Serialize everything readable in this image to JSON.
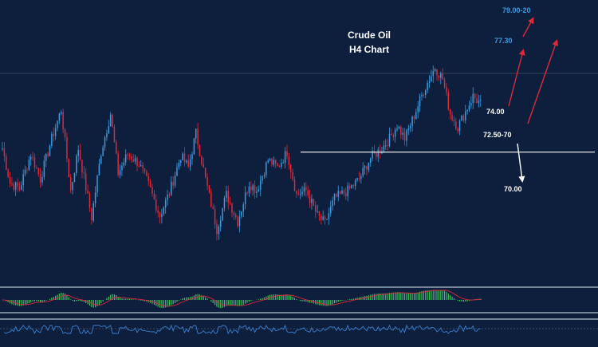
{
  "colors": {
    "background": "#0d1f3c",
    "bull": "#3a9be0",
    "bear": "#e0283a",
    "arrow_up": "#e0283a",
    "arrow_down": "#ffffff",
    "level_line": "#ffffff",
    "label_white": "#ffffff",
    "label_blue": "#3a9be0",
    "macd_hist": "#3fbf5f",
    "signal": "#e0283a",
    "rsi": "#3a7fd0",
    "separator": "#9aa6b8"
  },
  "chart_data": {
    "type": "candlestick",
    "title": "Crude Oil",
    "subtitle": "H4 Chart",
    "ylim": [
      66.0,
      80.5
    ],
    "levels": [
      {
        "label": "79.00-20",
        "value": 79.1,
        "style": "target",
        "color": "blue"
      },
      {
        "label": "77.30",
        "value": 77.3,
        "style": "target",
        "color": "blue"
      },
      {
        "label": "74.00",
        "value": 74.0,
        "style": "target",
        "color": "white"
      },
      {
        "label": "72.50-70",
        "value": 72.6,
        "style": "horizontal-line",
        "color": "white"
      },
      {
        "label": "70.00",
        "value": 70.0,
        "style": "target",
        "color": "white"
      }
    ],
    "anchors": [
      [
        0,
        72.8
      ],
      [
        4,
        71.0
      ],
      [
        9,
        70.7
      ],
      [
        15,
        72.5
      ],
      [
        20,
        71.2
      ],
      [
        26,
        73.3
      ],
      [
        31,
        74.8
      ],
      [
        36,
        70.6
      ],
      [
        40,
        72.8
      ],
      [
        47,
        69.2
      ],
      [
        52,
        72.6
      ],
      [
        57,
        74.6
      ],
      [
        61,
        71.5
      ],
      [
        66,
        72.5
      ],
      [
        72,
        72.0
      ],
      [
        77,
        70.9
      ],
      [
        83,
        69.3
      ],
      [
        88,
        70.5
      ],
      [
        94,
        72.4
      ],
      [
        98,
        71.8
      ],
      [
        102,
        73.6
      ],
      [
        107,
        71.2
      ],
      [
        113,
        68.6
      ],
      [
        118,
        70.4
      ],
      [
        124,
        69.0
      ],
      [
        130,
        71.0
      ],
      [
        134,
        70.6
      ],
      [
        140,
        72.2
      ],
      [
        145,
        71.8
      ],
      [
        150,
        72.6
      ],
      [
        155,
        70.4
      ],
      [
        160,
        70.6
      ],
      [
        166,
        69.3
      ],
      [
        170,
        68.9
      ],
      [
        175,
        70.2
      ],
      [
        182,
        70.6
      ],
      [
        188,
        71.2
      ],
      [
        194,
        72.3
      ],
      [
        200,
        72.8
      ],
      [
        204,
        73.3
      ],
      [
        208,
        74.0
      ],
      [
        212,
        73.3
      ],
      [
        217,
        74.5
      ],
      [
        222,
        75.8
      ],
      [
        225,
        76.4
      ],
      [
        228,
        77.0
      ],
      [
        232,
        76.4
      ],
      [
        236,
        74.6
      ],
      [
        240,
        73.9
      ],
      [
        244,
        74.7
      ],
      [
        248,
        75.5
      ],
      [
        252,
        75.1
      ]
    ],
    "macd_ylim": [
      -1.0,
      1.0
    ],
    "rsi_ylim": [
      0,
      100
    ]
  }
}
